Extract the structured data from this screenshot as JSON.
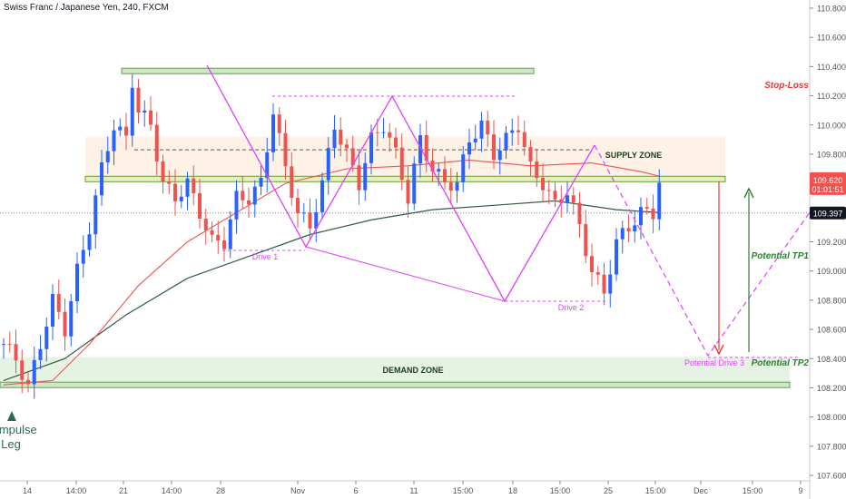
{
  "chart_data": {
    "type": "candlestick",
    "title": "Swiss Franc / Japanese Yen, 240, FXCM",
    "ylim": [
      107.58,
      110.88
    ],
    "y_ticks": [
      "110.800",
      "110.600",
      "110.400",
      "110.200",
      "110.000",
      "109.800",
      "109.600",
      "109.400",
      "109.200",
      "109.000",
      "108.800",
      "108.600",
      "108.400",
      "108.200",
      "108.000",
      "107.800",
      "107.600"
    ],
    "x_ticks": [
      "14",
      "14:00",
      "21",
      "14:00",
      "28",
      "Nov",
      "6",
      "11",
      "15:00",
      "18",
      "15:00",
      "25",
      "15:00",
      "Dec",
      "15:00",
      "9"
    ],
    "price_labels": {
      "last": {
        "value": 109.62,
        "text": "109.620",
        "countdown": "01:01:51",
        "color": "#ef5350"
      },
      "ma": {
        "value": 109.397,
        "text": "109.397",
        "color": "#131722"
      }
    },
    "zones": {
      "supply": {
        "label": "SUPPLY ZONE",
        "low": 109.65,
        "high": 109.92
      },
      "demand": {
        "label": "DEMAND ZONE",
        "low": 108.24,
        "high": 108.41
      }
    },
    "levels": [
      {
        "name": "top-resistance",
        "value": 110.37
      },
      {
        "name": "supply-line",
        "value": 109.63
      },
      {
        "name": "demand-line",
        "value": 108.22
      }
    ],
    "labels": {
      "drive1": "Drive 1",
      "drive2": "Drive 2",
      "drive3": "Potential Drive 3",
      "stop_loss": "Stop-Loss",
      "tp1": "Potential TP1",
      "tp2": "Potential TP2",
      "impulse_line1": "Impulse",
      "impulse_line2": "Leg"
    },
    "colors": {
      "bull": "#2962ff",
      "bear": "#ef5350",
      "ma_slow": "#2e5d3e",
      "ma_fast": "#ef5350",
      "pattern": "#e040fb",
      "stop": "#e53935",
      "target": "#2e7d32"
    },
    "candle_anchors": [
      [
        0,
        108.5
      ],
      [
        2,
        108.4
      ],
      [
        4,
        108.2
      ],
      [
        6,
        108.5
      ],
      [
        8,
        108.8
      ],
      [
        10,
        108.6
      ],
      [
        12,
        109.0
      ],
      [
        14,
        109.3
      ],
      [
        16,
        109.7
      ],
      [
        18,
        110.0
      ],
      [
        20,
        109.9
      ],
      [
        21,
        110.3
      ],
      [
        22,
        110.1
      ],
      [
        24,
        110.0
      ],
      [
        26,
        109.6
      ],
      [
        28,
        109.5
      ],
      [
        30,
        109.6
      ],
      [
        32,
        109.4
      ],
      [
        34,
        109.2
      ],
      [
        36,
        109.2
      ],
      [
        38,
        109.5
      ],
      [
        40,
        109.5
      ],
      [
        42,
        109.6
      ],
      [
        44,
        110.1
      ],
      [
        46,
        109.7
      ],
      [
        48,
        109.4
      ],
      [
        50,
        109.3
      ],
      [
        52,
        109.6
      ],
      [
        54,
        110.0
      ],
      [
        56,
        109.8
      ],
      [
        58,
        109.6
      ],
      [
        60,
        109.9
      ],
      [
        62,
        110.0
      ],
      [
        64,
        109.8
      ],
      [
        66,
        109.5
      ],
      [
        68,
        109.9
      ],
      [
        70,
        109.7
      ],
      [
        72,
        109.6
      ],
      [
        74,
        109.6
      ],
      [
        76,
        109.9
      ],
      [
        78,
        110.0
      ],
      [
        80,
        109.8
      ],
      [
        82,
        109.9
      ],
      [
        84,
        110.0
      ],
      [
        86,
        109.7
      ],
      [
        88,
        109.6
      ],
      [
        90,
        109.45
      ],
      [
        92,
        109.55
      ],
      [
        94,
        109.3
      ],
      [
        96,
        109.0
      ],
      [
        98,
        108.85
      ],
      [
        100,
        109.2
      ],
      [
        102,
        109.3
      ],
      [
        104,
        109.4
      ],
      [
        106,
        109.4
      ],
      [
        107,
        109.62
      ]
    ],
    "ma_slow": [
      [
        0,
        108.25
      ],
      [
        10,
        108.4
      ],
      [
        20,
        108.7
      ],
      [
        30,
        108.95
      ],
      [
        40,
        109.1
      ],
      [
        50,
        109.25
      ],
      [
        60,
        109.35
      ],
      [
        70,
        109.42
      ],
      [
        80,
        109.45
      ],
      [
        90,
        109.48
      ],
      [
        100,
        109.42
      ],
      [
        107,
        109.4
      ]
    ],
    "ma_fast": [
      [
        0,
        108.22
      ],
      [
        8,
        108.25
      ],
      [
        14,
        108.5
      ],
      [
        22,
        108.9
      ],
      [
        30,
        109.2
      ],
      [
        38,
        109.4
      ],
      [
        46,
        109.6
      ],
      [
        56,
        109.7
      ],
      [
        66,
        109.72
      ],
      [
        76,
        109.76
      ],
      [
        86,
        109.72
      ],
      [
        96,
        109.74
      ],
      [
        104,
        109.68
      ],
      [
        107,
        109.65
      ]
    ]
  }
}
